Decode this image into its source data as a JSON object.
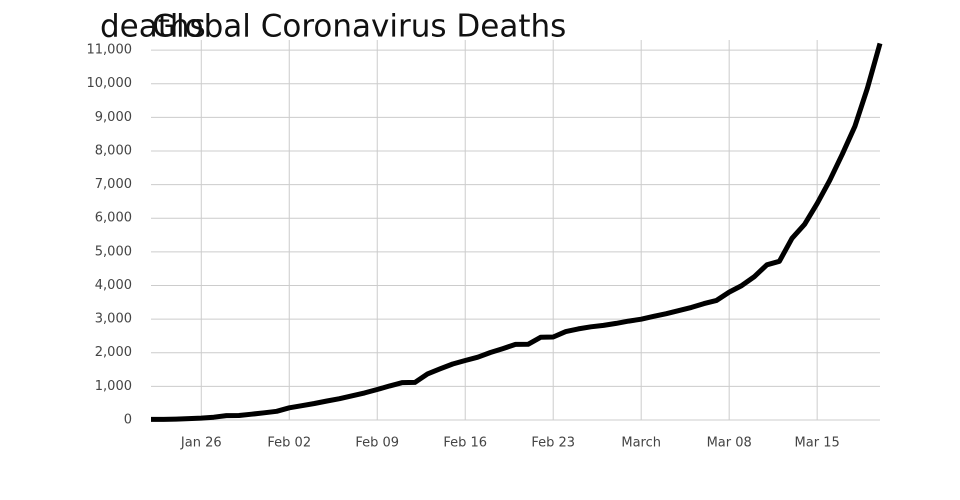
{
  "chart_data": {
    "type": "line",
    "title": "Global Coronavirus Deaths",
    "ylabel": "deaths",
    "x": [
      "01-22",
      "01-23",
      "01-24",
      "01-25",
      "01-26",
      "01-27",
      "01-28",
      "01-29",
      "01-30",
      "01-31",
      "02-01",
      "02-02",
      "02-03",
      "02-04",
      "02-05",
      "02-06",
      "02-07",
      "02-08",
      "02-09",
      "02-10",
      "02-11",
      "02-12",
      "02-13",
      "02-14",
      "02-15",
      "02-16",
      "02-17",
      "02-18",
      "02-19",
      "02-20",
      "02-21",
      "02-22",
      "02-23",
      "02-24",
      "02-25",
      "02-26",
      "02-27",
      "02-28",
      "02-29",
      "03-01",
      "03-02",
      "03-03",
      "03-04",
      "03-05",
      "03-06",
      "03-07",
      "03-08",
      "03-09",
      "03-10",
      "03-11",
      "03-12",
      "03-13",
      "03-14",
      "03-15",
      "03-16",
      "03-17",
      "03-18",
      "03-19",
      "03-20"
    ],
    "series": [
      {
        "name": "deaths",
        "color": "#000000",
        "values": [
          17,
          18,
          26,
          42,
          56,
          82,
          131,
          133,
          171,
          213,
          259,
          362,
          426,
          492,
          564,
          634,
          719,
          806,
          906,
          1013,
          1113,
          1118,
          1371,
          1523,
          1666,
          1770,
          1868,
          2007,
          2122,
          2247,
          2251,
          2458,
          2469,
          2629,
          2708,
          2770,
          2814,
          2872,
          2941,
          2996,
          3085,
          3160,
          3254,
          3348,
          3460,
          3558,
          3803,
          3996,
          4262,
          4615,
          4720,
          5404,
          5819,
          6440,
          7126,
          7905,
          8733,
          9867,
          11200
        ]
      }
    ],
    "xlim": [
      "01-22",
      "03-20"
    ],
    "xticks": [
      {
        "value": "01-26",
        "label": "Jan 26"
      },
      {
        "value": "02-02",
        "label": "Feb 02"
      },
      {
        "value": "02-09",
        "label": "Feb 09"
      },
      {
        "value": "02-16",
        "label": "Feb 16"
      },
      {
        "value": "02-23",
        "label": "Feb 23"
      },
      {
        "value": "03-01",
        "label": "March"
      },
      {
        "value": "03-08",
        "label": "Mar 08"
      },
      {
        "value": "03-15",
        "label": "Mar 15"
      }
    ],
    "ylim": [
      0,
      11300
    ],
    "yticks": [
      0,
      {
        "value": 1000,
        "label": "1,000"
      },
      {
        "value": 2000,
        "label": "2,000"
      },
      {
        "value": 3000,
        "label": "3,000"
      },
      {
        "value": 4000,
        "label": "4,000"
      },
      {
        "value": 5000,
        "label": "5,000"
      },
      {
        "value": 6000,
        "label": "6,000"
      },
      {
        "value": 7000,
        "label": "7,000"
      },
      {
        "value": 8000,
        "label": "8,000"
      },
      {
        "value": 9000,
        "label": "9,000"
      },
      {
        "value": 10000,
        "label": "10,000"
      },
      {
        "value": 11000,
        "label": "11,000"
      }
    ],
    "grid": true
  }
}
